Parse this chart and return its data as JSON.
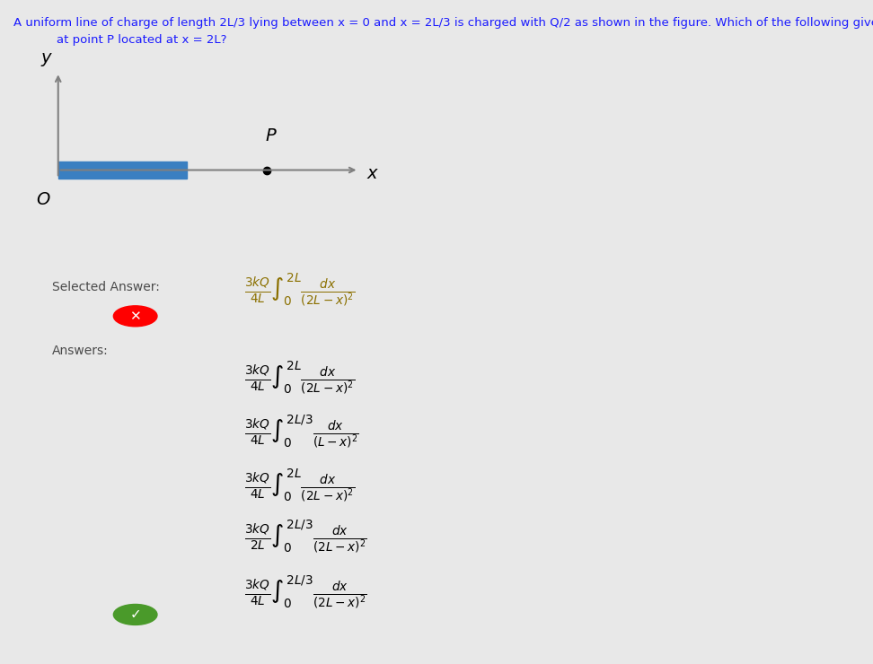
{
  "bg_color": "#e8e8e8",
  "diagram_bg": "#ffffff",
  "question_text1": "A uniform line of charge of length 2L/3 lying between x = 0 and x = 2L/3 is charged with Q/2 as shown in the figure. Which of the following gives the electric field",
  "question_text2": "at point P located at x = 2L?",
  "selected_label": "Selected Answer:",
  "answers_label": "Answers:",
  "selected_formula": "\\frac{3kQ}{4L}\\int_0^{2L}\\frac{dx}{(2L-x)^2}",
  "answers": [
    "\\frac{3kQ}{4L}\\int_0^{2L}\\frac{dx}{(2L-x)^2}",
    "\\frac{3kQ}{4L}\\int_0^{2L/3}\\frac{dx}{(L-x)^2}",
    "\\frac{3kQ}{4L}\\int_0^{2L}\\frac{dx}{(2L-x)^2}",
    "\\frac{3kQ}{2L}\\int_0^{2L/3}\\frac{dx}{(2L-x)^2}",
    "\\frac{3kQ}{4L}\\int_0^{2L/3}\\frac{dx}{(2L-x)^2}"
  ],
  "correct_answer_index": 4,
  "wrong_answer_index": 0,
  "charge_color": "#3a7fc1",
  "axis_color": "#808080",
  "label_color": "#4a4a4a",
  "selected_color": "#8b7000",
  "answers_color": "#3a3a3a"
}
